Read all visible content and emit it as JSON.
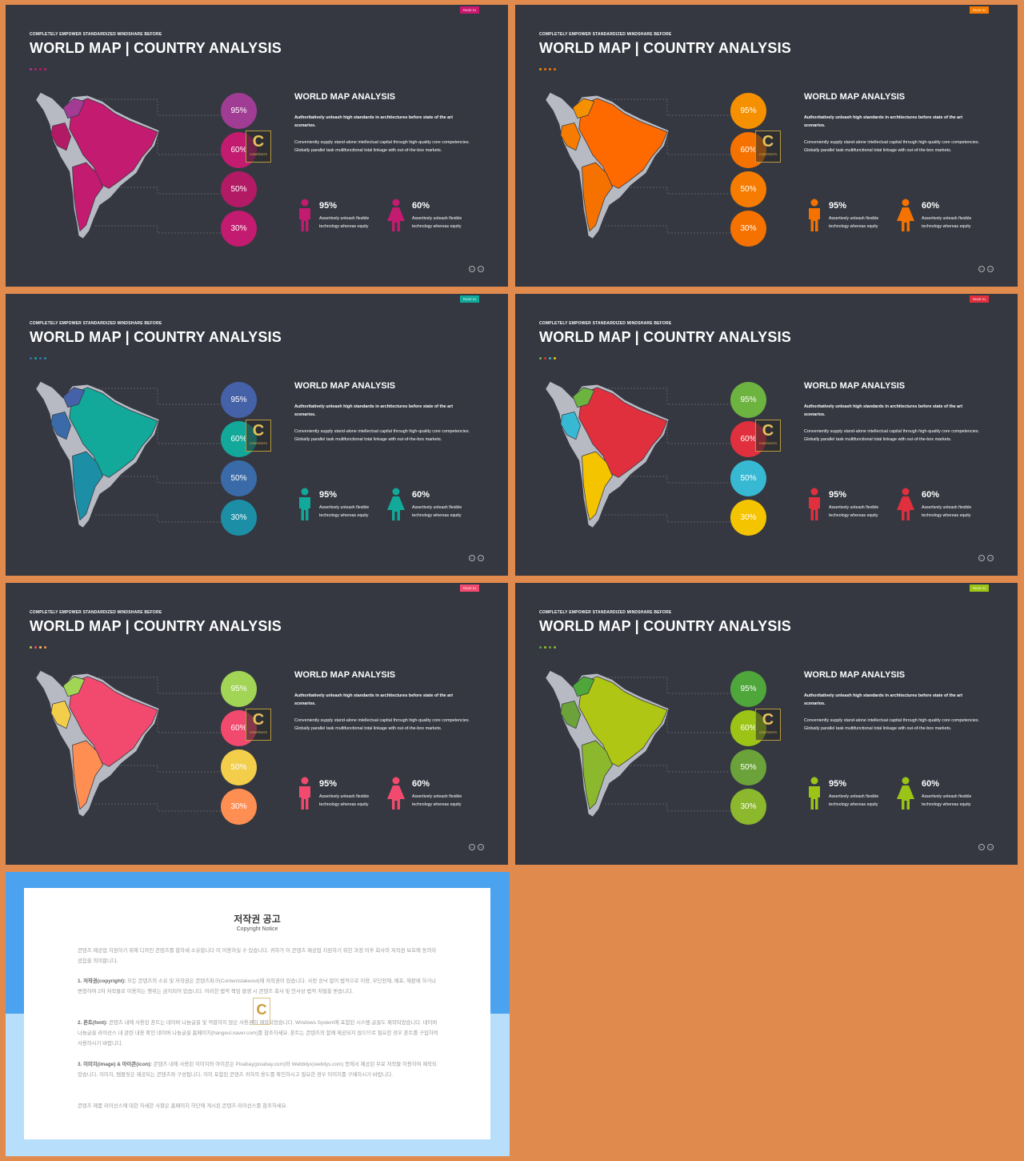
{
  "slides": [
    {
      "page_tag": "PAGE 01",
      "kicker": "COMPLETELY  EMPOWER  STANDARDIZED  MINDSHARE  BEFORE",
      "title": "WORLD MAP | COUNTRY ANALYSIS",
      "section_title": "WORLD MAP ANALYSIS",
      "bold_text": "Authoritatively unleash high standards in architectures before state of the art scenarios.",
      "body_text": "Conveniently supply stand-alone intellectual capital through high-quality core competencies. Globally parallel task multifunctional total linkage with out-of-the-box markets.",
      "circles": [
        "95%",
        "60%",
        "50%",
        "30%"
      ],
      "stats": [
        {
          "pct": "95%",
          "desc": "Assertively unleash flexible technology whereas equity"
        },
        {
          "pct": "60%",
          "desc": "Assertively unleash flexible technology whereas equity"
        }
      ],
      "colors": {
        "tag": "#C9186F",
        "circles": [
          "#A03C94",
          "#C21B6F",
          "#B31A66",
          "#C21B6F"
        ],
        "main": "#C21B6F",
        "dark": "#A33A93",
        "person1": "#C21B6F",
        "person2": "#C21B6F"
      }
    },
    {
      "page_tag": "PAGE 01",
      "kicker": "COMPLETELY  EMPOWER  STANDARDIZED  MINDSHARE  BEFORE",
      "title": "WORLD MAP | COUNTRY ANALYSIS",
      "section_title": "WORLD MAP ANALYSIS",
      "bold_text": "Authoritatively unleash high standards in architectures before state of the art scenarios.",
      "body_text": "Conveniently supply stand-alone intellectual capital through high-quality core competencies. Globally parallel task multifunctional total linkage with out-of-the-box markets.",
      "circles": [
        "95%",
        "60%",
        "50%",
        "30%"
      ],
      "stats": [
        {
          "pct": "95%",
          "desc": "Assertively unleash flexible technology whereas equity"
        },
        {
          "pct": "60%",
          "desc": "Assertively unleash flexible technology whereas equity"
        }
      ],
      "colors": {
        "tag": "#F57C00",
        "circles": [
          "#F59100",
          "#F57200",
          "#F57C00",
          "#F57200"
        ],
        "main": "#FF6A00",
        "dark": "#F59100",
        "person1": "#F57200",
        "person2": "#F57200"
      }
    },
    {
      "page_tag": "PAGE 01",
      "kicker": "COMPLETELY  EMPOWER  STANDARDIZED  MINDSHARE  BEFORE",
      "title": "WORLD MAP | COUNTRY ANALYSIS",
      "section_title": "WORLD MAP ANALYSIS",
      "bold_text": "Authoritatively unleash high standards in architectures before state of the art scenarios.",
      "body_text": "Conveniently supply stand-alone intellectual capital through high-quality core competencies. Globally parallel task multifunctional total linkage with out-of-the-box markets.",
      "circles": [
        "95%",
        "60%",
        "50%",
        "30%"
      ],
      "stats": [
        {
          "pct": "95%",
          "desc": "Assertively unleash flexible technology whereas equity"
        },
        {
          "pct": "60%",
          "desc": "Assertively unleash flexible technology whereas equity"
        }
      ],
      "colors": {
        "tag": "#12A89A",
        "circles": [
          "#4561A8",
          "#12A89A",
          "#3A6BA8",
          "#1C8FA6"
        ],
        "main": "#12A89A",
        "dark": "#4561A8",
        "person1": "#12A89A",
        "person2": "#12A89A"
      }
    },
    {
      "page_tag": "PAGE 01",
      "kicker": "COMPLETELY  EMPOWER  STANDARDIZED  MINDSHARE  BEFORE",
      "title": "WORLD MAP | COUNTRY ANALYSIS",
      "section_title": "WORLD MAP ANALYSIS",
      "bold_text": "Authoritatively unleash high standards in architectures before state of the art scenarios.",
      "body_text": "Conveniently supply stand-alone intellectual capital through high-quality core competencies. Globally parallel task multifunctional total linkage with out-of-the-box markets.",
      "circles": [
        "95%",
        "60%",
        "50%",
        "30%"
      ],
      "stats": [
        {
          "pct": "95%",
          "desc": "Assertively unleash flexible technology whereas equity"
        },
        {
          "pct": "60%",
          "desc": "Assertively unleash flexible technology whereas equity"
        }
      ],
      "colors": {
        "tag": "#E0303E",
        "circles": [
          "#6DB33F",
          "#E0303E",
          "#38B9D3",
          "#F5C400"
        ],
        "main": "#E0303E",
        "dark": "#6DB33F",
        "person1": "#E0303E",
        "person2": "#E0303E"
      }
    },
    {
      "page_tag": "PAGE 01",
      "kicker": "COMPLETELY  EMPOWER  STANDARDIZED  MINDSHARE  BEFORE",
      "title": "WORLD MAP | COUNTRY ANALYSIS",
      "section_title": "WORLD MAP ANALYSIS",
      "bold_text": "Authoritatively unleash high standards in architectures before state of the art scenarios.",
      "body_text": "Conveniently supply stand-alone intellectual capital through high-quality core competencies. Globally parallel task multifunctional total linkage with out-of-the-box markets.",
      "circles": [
        "95%",
        "60%",
        "50%",
        "30%"
      ],
      "stats": [
        {
          "pct": "95%",
          "desc": "Assertively unleash flexible technology whereas equity"
        },
        {
          "pct": "60%",
          "desc": "Assertively unleash flexible technology whereas equity"
        }
      ],
      "colors": {
        "tag": "#F24A6E",
        "circles": [
          "#A2D455",
          "#F24A6E",
          "#F2CE4A",
          "#FF8E53"
        ],
        "main": "#F24A6E",
        "dark": "#A2D455",
        "person1": "#F24A6E",
        "person2": "#F24A6E"
      }
    },
    {
      "page_tag": "PAGE 01",
      "kicker": "COMPLETELY  EMPOWER  STANDARDIZED  MINDSHARE  BEFORE",
      "title": "WORLD MAP | COUNTRY ANALYSIS",
      "section_title": "WORLD MAP ANALYSIS",
      "bold_text": "Authoritatively unleash high standards in architectures before state of the art scenarios.",
      "body_text": "Conveniently supply stand-alone intellectual capital through high-quality core competencies. Globally parallel task multifunctional total linkage with out-of-the-box markets.",
      "circles": [
        "95%",
        "60%",
        "50%",
        "30%"
      ],
      "stats": [
        {
          "pct": "95%",
          "desc": "Assertively unleash flexible technology whereas equity"
        },
        {
          "pct": "60%",
          "desc": "Assertively unleash flexible technology whereas equity"
        }
      ],
      "colors": {
        "tag": "#9CC417",
        "circles": [
          "#4FA63B",
          "#9CC417",
          "#6BA33A",
          "#8BB82C"
        ],
        "main": "#AFC614",
        "dark": "#4FA63B",
        "person1": "#9CC417",
        "person2": "#9CC417"
      }
    }
  ],
  "notice": {
    "title": "저작권 공고",
    "subtitle": "Copyright Notice",
    "paragraphs": [
      {
        "head": "",
        "text": "콘텐츠 제공업 지원하기 위해 디자인 콘텐츠를 합하세 소유합니다 미 이용하실 수 있습니다. 귀하가 이 콘텐츠 제공업 지원하기 위한 과정 이후 회사의 저작권 보호에 동의하셨음을 의미합니다."
      },
      {
        "head": "1. 저작권(copyright): ",
        "text": "모든 콘텐츠의 소유 및 저작권은 콘텐츠파크(Contentstakeout)에 저작권이 있습니다. 사전 승낙 없이 법적으로 이용, 무단전재, 배포, 재판매 하거나 변형하여 2차 저작물로 이용하는 행위는 금지되어 있습니다. 이러한 법적 책임 발생 시 콘텐츠 회사 및 민사상 법적 처벌을 받습니다."
      },
      {
        "head": "2. 폰트(font): ",
        "text": "콘텐츠 내에 사용된 폰트는 네이버 나눔글꼴 및 적합하지 않은 사용권이 제작되었습니다. Windows System에 포함된 시스템 글꼴도 제작되었습니다. 네이버 나눔글꼴 라이선스 내 관련 내용 확인 네이버 나눔글꼴 홈페이지(hangeul.naver.com)를 참조하세요. 폰트는 콘텐츠의 함께 제공되지 않으므로 필요한 경우 폰트를 구입하여 사용하시기 바랍니다."
      },
      {
        "head": "3. 이미지(image) & 아이콘(icon): ",
        "text": "콘텐츠 내에 사용된 이미지와 아이콘은 Pixabay(pixabay.com)와 Webbilys(webilys.com) 등에서 제공된 무료 저작물 이용하여 제작되었습니다. 이미지, 템플릿은 제공되는 콘텐츠와 구성됩니다. 이미 포함된 콘텐츠 귀하의 용도를 확인하시고 필요한 경우 이미지를 구매하시기 바랍니다."
      },
      {
        "head": "",
        "text": "콘텐츠 제품 라이선스에 대한 자세한 사항은 홈페이지 하단에 게시된 콘텐츠 라이선스를 참조하세요."
      }
    ]
  }
}
